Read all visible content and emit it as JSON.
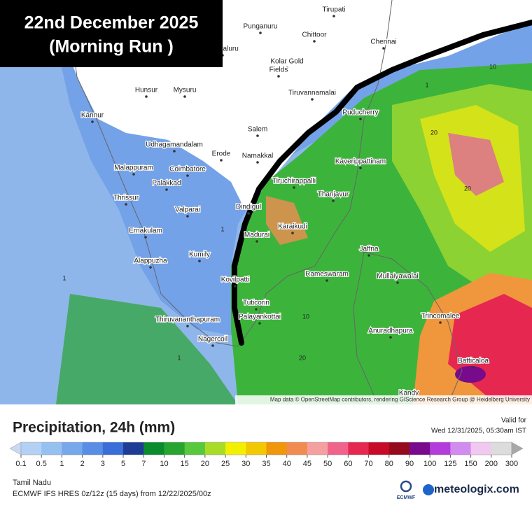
{
  "header": {
    "title_line1": "22nd December 2025",
    "title_line2": "(Morning Run )"
  },
  "places": [
    "Tirupati",
    "Punganuru",
    "Chittoor",
    "Chennai",
    "Bengaluru",
    "Kolar Gold",
    "Fields",
    "Hunsur",
    "Mysuru",
    "Tiruvannamalai",
    "Puducherry",
    "Kannur",
    "Salem",
    "Udhagamandalam",
    "Erode",
    "Namakkal",
    "Kaverippattinam",
    "Malappuram",
    "Coimbatore",
    "Palakkad",
    "Tiruchirappalli",
    "Thanjavur",
    "Thrissur",
    "Valparai",
    "Dindigul",
    "Karaikudi",
    "Madurai",
    "Ernakulam",
    "Jaffna",
    "Kumily",
    "Alappuzha",
    "Rameswaram",
    "Mullaiyawalai",
    "Kovilpatti",
    "Tuticorin",
    "Trincomalee",
    "Thiruvananthapuram",
    "Palayankottai",
    "Anuradhapura",
    "Nagercoil",
    "Batticaloa",
    "Kandy"
  ],
  "contour_labels": [
    10,
    1,
    20,
    20,
    1,
    1,
    10,
    20,
    1
  ],
  "attribution": "Map data © OpenStreetMap contributors, rendering GIScience Research Group @ Heidelberg University",
  "legend": {
    "title": "Precipitation, 24h (mm)",
    "valid_label": "Valid for",
    "valid_time": "Wed 12/31/2025, 05:30am IST",
    "ticks": [
      0.1,
      0.5,
      1,
      2,
      3,
      5,
      7,
      10,
      15,
      20,
      25,
      30,
      35,
      40,
      45,
      50,
      60,
      70,
      80,
      90,
      100,
      125,
      150,
      200,
      300
    ],
    "under_color": "#c8daf2",
    "colors": [
      "#b4d0f4",
      "#96c0f0",
      "#78a8ec",
      "#5a8ee6",
      "#3a6ed8",
      "#1e3c96",
      "#0a8c2c",
      "#28a430",
      "#58c83c",
      "#a8dc28",
      "#f2f000",
      "#f2c800",
      "#f0960a",
      "#f08c50",
      "#f4a0a0",
      "#f0648c",
      "#e62850",
      "#c80a28",
      "#960a1e",
      "#780a8c",
      "#b43cdc",
      "#d28cf0",
      "#f0c8f0",
      "#dcdcdc"
    ],
    "over_color": "#a8a8a8"
  },
  "footer": {
    "region": "Tamil Nadu",
    "model": "ECMWF IFS HRES 0z/12z (15 days) from 12/22/2025/00z",
    "ecmwf": "ECMWF",
    "brand": "meteologix.com"
  }
}
